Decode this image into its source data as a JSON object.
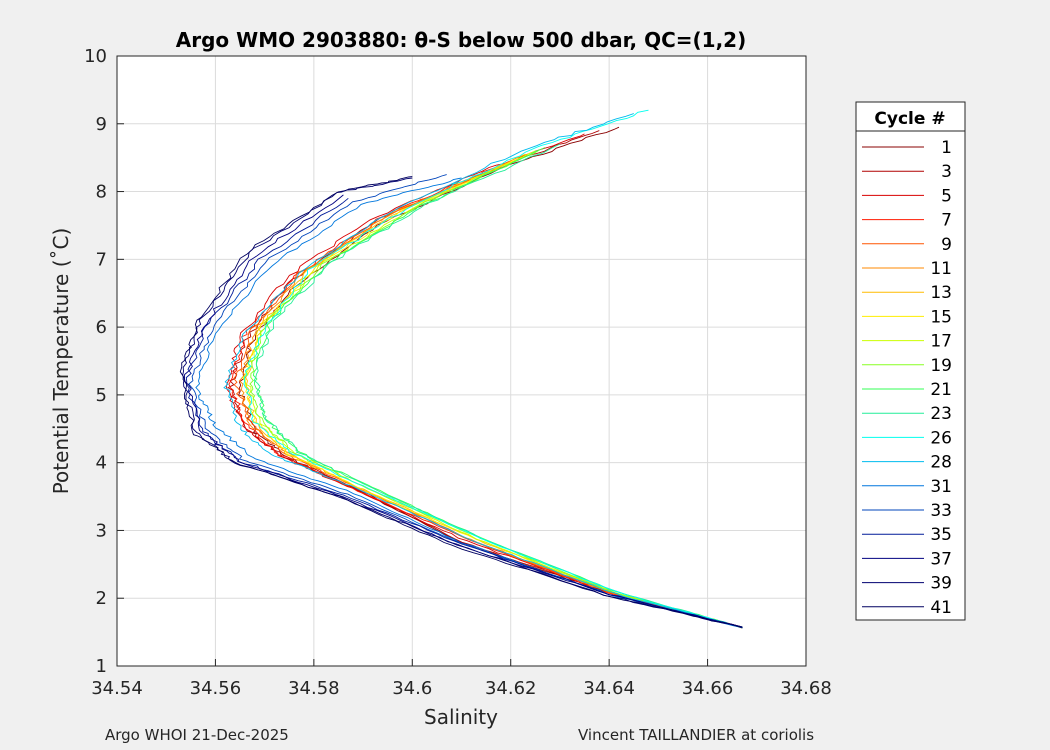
{
  "chart_data": {
    "type": "line",
    "title": "Argo WMO 2903880: θ-S below 500 dbar,  QC=(1,2)",
    "xlabel": "Salinity",
    "ylabel": "Potential Temperature (˚C)",
    "xlim": [
      34.54,
      34.68
    ],
    "ylim": [
      1,
      10
    ],
    "xticks": [
      "34.54",
      "34.56",
      "34.58",
      "34.6",
      "34.62",
      "34.64",
      "34.66",
      "34.68"
    ],
    "yticks": [
      "1",
      "2",
      "3",
      "4",
      "5",
      "6",
      "7",
      "8",
      "9",
      "10"
    ],
    "grid": true,
    "legend": {
      "title": "Cycle #",
      "placement": "right-outside"
    },
    "series": [
      {
        "name": "1",
        "color": "#8a0000",
        "values": [
          [
            34.667,
            1.57
          ],
          [
            34.64,
            2.08
          ],
          [
            34.61,
            2.82
          ],
          [
            34.59,
            3.55
          ],
          [
            34.575,
            4.07
          ],
          [
            34.568,
            4.45
          ],
          [
            34.565,
            5.05
          ],
          [
            34.567,
            5.75
          ],
          [
            34.576,
            6.6
          ],
          [
            34.593,
            7.5
          ],
          [
            34.62,
            8.4
          ],
          [
            34.642,
            8.95
          ]
        ]
      },
      {
        "name": "3",
        "color": "#b00000",
        "values": [
          [
            34.667,
            1.57
          ],
          [
            34.641,
            2.07
          ],
          [
            34.61,
            2.83
          ],
          [
            34.59,
            3.57
          ],
          [
            34.574,
            4.09
          ],
          [
            34.566,
            4.5
          ],
          [
            34.563,
            5.1
          ],
          [
            34.566,
            5.8
          ],
          [
            34.575,
            6.65
          ],
          [
            34.592,
            7.55
          ],
          [
            34.618,
            8.38
          ],
          [
            34.638,
            8.9
          ]
        ]
      },
      {
        "name": "5",
        "color": "#d80000",
        "values": [
          [
            34.667,
            1.57
          ],
          [
            34.641,
            2.08
          ],
          [
            34.611,
            2.84
          ],
          [
            34.589,
            3.58
          ],
          [
            34.573,
            4.1
          ],
          [
            34.566,
            4.55
          ],
          [
            34.562,
            5.12
          ],
          [
            34.565,
            5.85
          ],
          [
            34.574,
            6.7
          ],
          [
            34.591,
            7.58
          ],
          [
            34.616,
            8.35
          ],
          [
            34.635,
            8.85
          ]
        ]
      },
      {
        "name": "7",
        "color": "#ff1a00",
        "values": [
          [
            34.667,
            1.57
          ],
          [
            34.64,
            2.07
          ],
          [
            34.612,
            2.85
          ],
          [
            34.589,
            3.58
          ],
          [
            34.573,
            4.12
          ],
          [
            34.566,
            4.58
          ],
          [
            34.563,
            5.15
          ],
          [
            34.566,
            5.9
          ],
          [
            34.576,
            6.75
          ],
          [
            34.593,
            7.6
          ],
          [
            34.618,
            8.4
          ]
        ]
      },
      {
        "name": "9",
        "color": "#ff5500",
        "values": [
          [
            34.667,
            1.57
          ],
          [
            34.64,
            2.08
          ],
          [
            34.612,
            2.86
          ],
          [
            34.59,
            3.6
          ],
          [
            34.574,
            4.13
          ],
          [
            34.567,
            4.6
          ],
          [
            34.564,
            5.18
          ],
          [
            34.567,
            5.92
          ],
          [
            34.577,
            6.8
          ],
          [
            34.595,
            7.65
          ],
          [
            34.62,
            8.45
          ]
        ]
      },
      {
        "name": "11",
        "color": "#ff8800",
        "values": [
          [
            34.667,
            1.57
          ],
          [
            34.641,
            2.07
          ],
          [
            34.612,
            2.86
          ],
          [
            34.59,
            3.6
          ],
          [
            34.575,
            4.12
          ],
          [
            34.567,
            4.58
          ],
          [
            34.565,
            5.2
          ],
          [
            34.568,
            5.95
          ],
          [
            34.578,
            6.82
          ],
          [
            34.596,
            7.68
          ],
          [
            34.622,
            8.5
          ]
        ]
      },
      {
        "name": "13",
        "color": "#ffbb00",
        "values": [
          [
            34.667,
            1.57
          ],
          [
            34.641,
            2.08
          ],
          [
            34.613,
            2.87
          ],
          [
            34.59,
            3.6
          ],
          [
            34.575,
            4.12
          ],
          [
            34.568,
            4.6
          ],
          [
            34.566,
            5.2
          ],
          [
            34.569,
            5.98
          ],
          [
            34.579,
            6.85
          ],
          [
            34.597,
            7.7
          ],
          [
            34.623,
            8.55
          ]
        ]
      },
      {
        "name": "15",
        "color": "#ffee00",
        "values": [
          [
            34.667,
            1.57
          ],
          [
            34.641,
            2.08
          ],
          [
            34.613,
            2.87
          ],
          [
            34.59,
            3.6
          ],
          [
            34.575,
            4.12
          ],
          [
            34.568,
            4.62
          ],
          [
            34.566,
            5.22
          ],
          [
            34.569,
            6.0
          ],
          [
            34.58,
            6.88
          ],
          [
            34.598,
            7.72
          ],
          [
            34.624,
            8.57
          ]
        ]
      },
      {
        "name": "17",
        "color": "#ccff00",
        "values": [
          [
            34.667,
            1.57
          ],
          [
            34.641,
            2.08
          ],
          [
            34.613,
            2.88
          ],
          [
            34.591,
            3.62
          ],
          [
            34.576,
            4.14
          ],
          [
            34.569,
            4.62
          ],
          [
            34.566,
            5.25
          ],
          [
            34.57,
            6.02
          ],
          [
            34.581,
            6.9
          ],
          [
            34.6,
            7.75
          ],
          [
            34.625,
            8.6
          ]
        ]
      },
      {
        "name": "19",
        "color": "#88ff22",
        "values": [
          [
            34.667,
            1.57
          ],
          [
            34.641,
            2.08
          ],
          [
            34.614,
            2.88
          ],
          [
            34.591,
            3.62
          ],
          [
            34.576,
            4.14
          ],
          [
            34.569,
            4.65
          ],
          [
            34.567,
            5.25
          ],
          [
            34.57,
            6.05
          ],
          [
            34.582,
            6.92
          ],
          [
            34.601,
            7.78
          ],
          [
            34.626,
            8.62
          ]
        ]
      },
      {
        "name": "21",
        "color": "#33ff55",
        "values": [
          [
            34.667,
            1.57
          ],
          [
            34.642,
            2.08
          ],
          [
            34.614,
            2.89
          ],
          [
            34.592,
            3.63
          ],
          [
            34.577,
            4.15
          ],
          [
            34.57,
            4.66
          ],
          [
            34.568,
            5.28
          ],
          [
            34.571,
            6.08
          ],
          [
            34.583,
            6.95
          ],
          [
            34.602,
            7.8
          ],
          [
            34.627,
            8.65
          ]
        ]
      },
      {
        "name": "23",
        "color": "#22ee99",
        "values": [
          [
            34.667,
            1.57
          ],
          [
            34.642,
            2.08
          ],
          [
            34.614,
            2.89
          ],
          [
            34.592,
            3.62
          ],
          [
            34.577,
            4.15
          ],
          [
            34.57,
            4.68
          ],
          [
            34.568,
            5.3
          ],
          [
            34.572,
            6.1
          ],
          [
            34.584,
            6.98
          ],
          [
            34.603,
            7.82
          ],
          [
            34.63,
            8.7
          ]
        ]
      },
      {
        "name": "26",
        "color": "#00ffee",
        "values": [
          [
            34.667,
            1.57
          ],
          [
            34.642,
            2.08
          ],
          [
            34.614,
            2.88
          ],
          [
            34.591,
            3.62
          ],
          [
            34.576,
            4.13
          ],
          [
            34.568,
            4.6
          ],
          [
            34.566,
            5.25
          ],
          [
            34.57,
            6.0
          ],
          [
            34.58,
            6.9
          ],
          [
            34.6,
            7.8
          ],
          [
            34.625,
            8.65
          ],
          [
            34.648,
            9.2
          ]
        ]
      },
      {
        "name": "28",
        "color": "#00bbee",
        "values": [
          [
            34.667,
            1.57
          ],
          [
            34.641,
            2.07
          ],
          [
            34.612,
            2.86
          ],
          [
            34.59,
            3.58
          ],
          [
            34.572,
            4.1
          ],
          [
            34.565,
            4.5
          ],
          [
            34.562,
            5.15
          ],
          [
            34.566,
            5.9
          ],
          [
            34.577,
            6.8
          ],
          [
            34.596,
            7.72
          ],
          [
            34.622,
            8.6
          ],
          [
            34.645,
            9.15
          ]
        ]
      },
      {
        "name": "31",
        "color": "#0077dd",
        "values": [
          [
            34.667,
            1.57
          ],
          [
            34.64,
            2.06
          ],
          [
            34.61,
            2.82
          ],
          [
            34.588,
            3.55
          ],
          [
            34.568,
            4.05
          ],
          [
            34.56,
            4.55
          ],
          [
            34.556,
            5.1
          ],
          [
            34.56,
            5.9
          ],
          [
            34.571,
            6.9
          ],
          [
            34.59,
            7.82
          ],
          [
            34.61,
            8.2
          ]
        ]
      },
      {
        "name": "33",
        "color": "#0044bb",
        "values": [
          [
            34.667,
            1.57
          ],
          [
            34.64,
            2.06
          ],
          [
            34.61,
            2.81
          ],
          [
            34.587,
            3.53
          ],
          [
            34.566,
            4.03
          ],
          [
            34.558,
            4.5
          ],
          [
            34.555,
            5.15
          ],
          [
            34.559,
            5.95
          ],
          [
            34.57,
            6.95
          ],
          [
            34.588,
            7.85
          ],
          [
            34.607,
            8.25
          ]
        ]
      },
      {
        "name": "35",
        "color": "#001a99",
        "values": [
          [
            34.667,
            1.57
          ],
          [
            34.64,
            2.06
          ],
          [
            34.61,
            2.8
          ],
          [
            34.586,
            3.52
          ],
          [
            34.565,
            4.02
          ],
          [
            34.557,
            4.5
          ],
          [
            34.554,
            5.2
          ],
          [
            34.558,
            6.0
          ],
          [
            34.569,
            7.0
          ],
          [
            34.587,
            7.9
          ]
        ]
      },
      {
        "name": "37",
        "color": "#000080",
        "values": [
          [
            34.667,
            1.57
          ],
          [
            34.64,
            2.06
          ],
          [
            34.609,
            2.79
          ],
          [
            34.586,
            3.5
          ],
          [
            34.565,
            4.01
          ],
          [
            34.557,
            4.48
          ],
          [
            34.554,
            5.25
          ],
          [
            34.558,
            6.05
          ],
          [
            34.568,
            7.05
          ],
          [
            34.586,
            7.95
          ]
        ]
      },
      {
        "name": "39",
        "color": "#000070",
        "values": [
          [
            34.667,
            1.57
          ],
          [
            34.639,
            2.05
          ],
          [
            34.609,
            2.79
          ],
          [
            34.585,
            3.5
          ],
          [
            34.564,
            4.0
          ],
          [
            34.556,
            4.45
          ],
          [
            34.553,
            5.3
          ],
          [
            34.557,
            6.1
          ],
          [
            34.567,
            7.1
          ],
          [
            34.585,
            7.98
          ],
          [
            34.6,
            8.2
          ]
        ]
      },
      {
        "name": "41",
        "color": "#000060",
        "values": [
          [
            34.667,
            1.57
          ],
          [
            34.639,
            2.05
          ],
          [
            34.608,
            2.78
          ],
          [
            34.585,
            3.5
          ],
          [
            34.564,
            4.0
          ],
          [
            34.556,
            4.42
          ],
          [
            34.553,
            5.35
          ],
          [
            34.557,
            6.15
          ],
          [
            34.567,
            7.15
          ],
          [
            34.585,
            8.0
          ],
          [
            34.6,
            8.22
          ]
        ]
      }
    ]
  },
  "footer": {
    "left": "Argo WHOI 21-Dec-2025",
    "right": "Vincent TAILLANDIER at coriolis"
  }
}
